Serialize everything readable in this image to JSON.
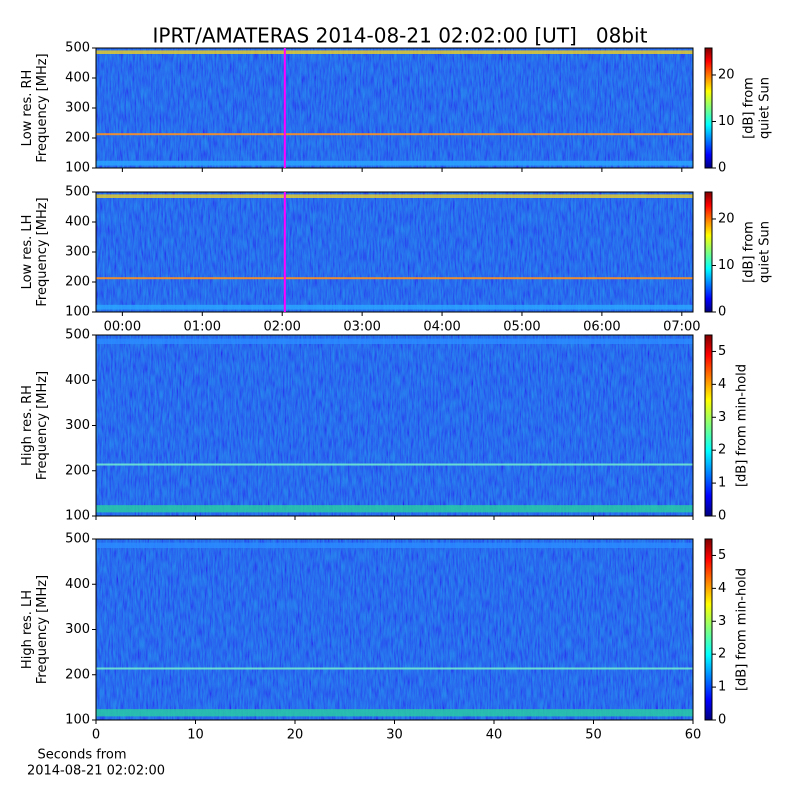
{
  "chart_data": [
    {
      "type": "heatmap",
      "title": "IPRT/AMATERAS 2014-08-21 02:02:00 [UT]   08bit",
      "ylabel": [
        "Low res. RH",
        "Frequency [MHz]"
      ],
      "ylim": [
        100,
        500
      ],
      "yticks": [
        100,
        200,
        300,
        400,
        500
      ],
      "xlim": [
        -0.33,
        7.14
      ],
      "marker_x": 2.033,
      "marker_color": "#ff00ff",
      "colorbar": {
        "label": [
          "[dB] from",
          "quiet Sun"
        ],
        "lim": [
          0,
          25.8
        ],
        "ticks": [
          0,
          10,
          20
        ],
        "colormap": "jet"
      }
    },
    {
      "type": "heatmap",
      "ylabel": [
        "Low res. LH",
        "Frequency [MHz]"
      ],
      "ylim": [
        100,
        500
      ],
      "yticks": [
        100,
        200,
        300,
        400,
        500
      ],
      "xlim": [
        -0.33,
        7.14
      ],
      "xticks": [
        {
          "value": 0,
          "label": "00:00"
        },
        {
          "value": 1,
          "label": "01:00"
        },
        {
          "value": 2,
          "label": "02:00"
        },
        {
          "value": 3,
          "label": "03:00"
        },
        {
          "value": 4,
          "label": "04:00"
        },
        {
          "value": 5,
          "label": "05:00"
        },
        {
          "value": 6,
          "label": "06:00"
        },
        {
          "value": 7,
          "label": "07:00"
        }
      ],
      "marker_x": 2.033,
      "marker_color": "#ff00ff",
      "colorbar": {
        "label": [
          "[dB] from",
          "quiet Sun"
        ],
        "lim": [
          0,
          25.8
        ],
        "ticks": [
          0,
          10,
          20
        ],
        "colormap": "jet"
      }
    },
    {
      "type": "heatmap",
      "ylabel": [
        "High res. RH",
        "Frequency [MHz]"
      ],
      "ylim": [
        100,
        500
      ],
      "yticks": [
        100,
        200,
        300,
        400,
        500
      ],
      "xlim": [
        0,
        60
      ],
      "colorbar": {
        "label": [
          "[dB] from min-hold"
        ],
        "lim": [
          0,
          5.5
        ],
        "ticks": [
          0,
          1,
          2,
          3,
          4,
          5
        ],
        "colormap": "jet"
      }
    },
    {
      "type": "heatmap",
      "ylabel": [
        "High res. LH",
        "Frequency [MHz]"
      ],
      "ylim": [
        100,
        500
      ],
      "yticks": [
        100,
        200,
        300,
        400,
        500
      ],
      "xlim": [
        0,
        60
      ],
      "xticks": [
        0,
        10,
        20,
        30,
        40,
        50,
        60
      ],
      "xlabel": [
        "Seconds from",
        "2014-08-21 02:02:00"
      ],
      "colorbar": {
        "label": [
          "[dB] from min-hold"
        ],
        "lim": [
          0,
          5.5
        ],
        "ticks": [
          0,
          1,
          2,
          3,
          4,
          5
        ],
        "colormap": "jet"
      }
    }
  ]
}
